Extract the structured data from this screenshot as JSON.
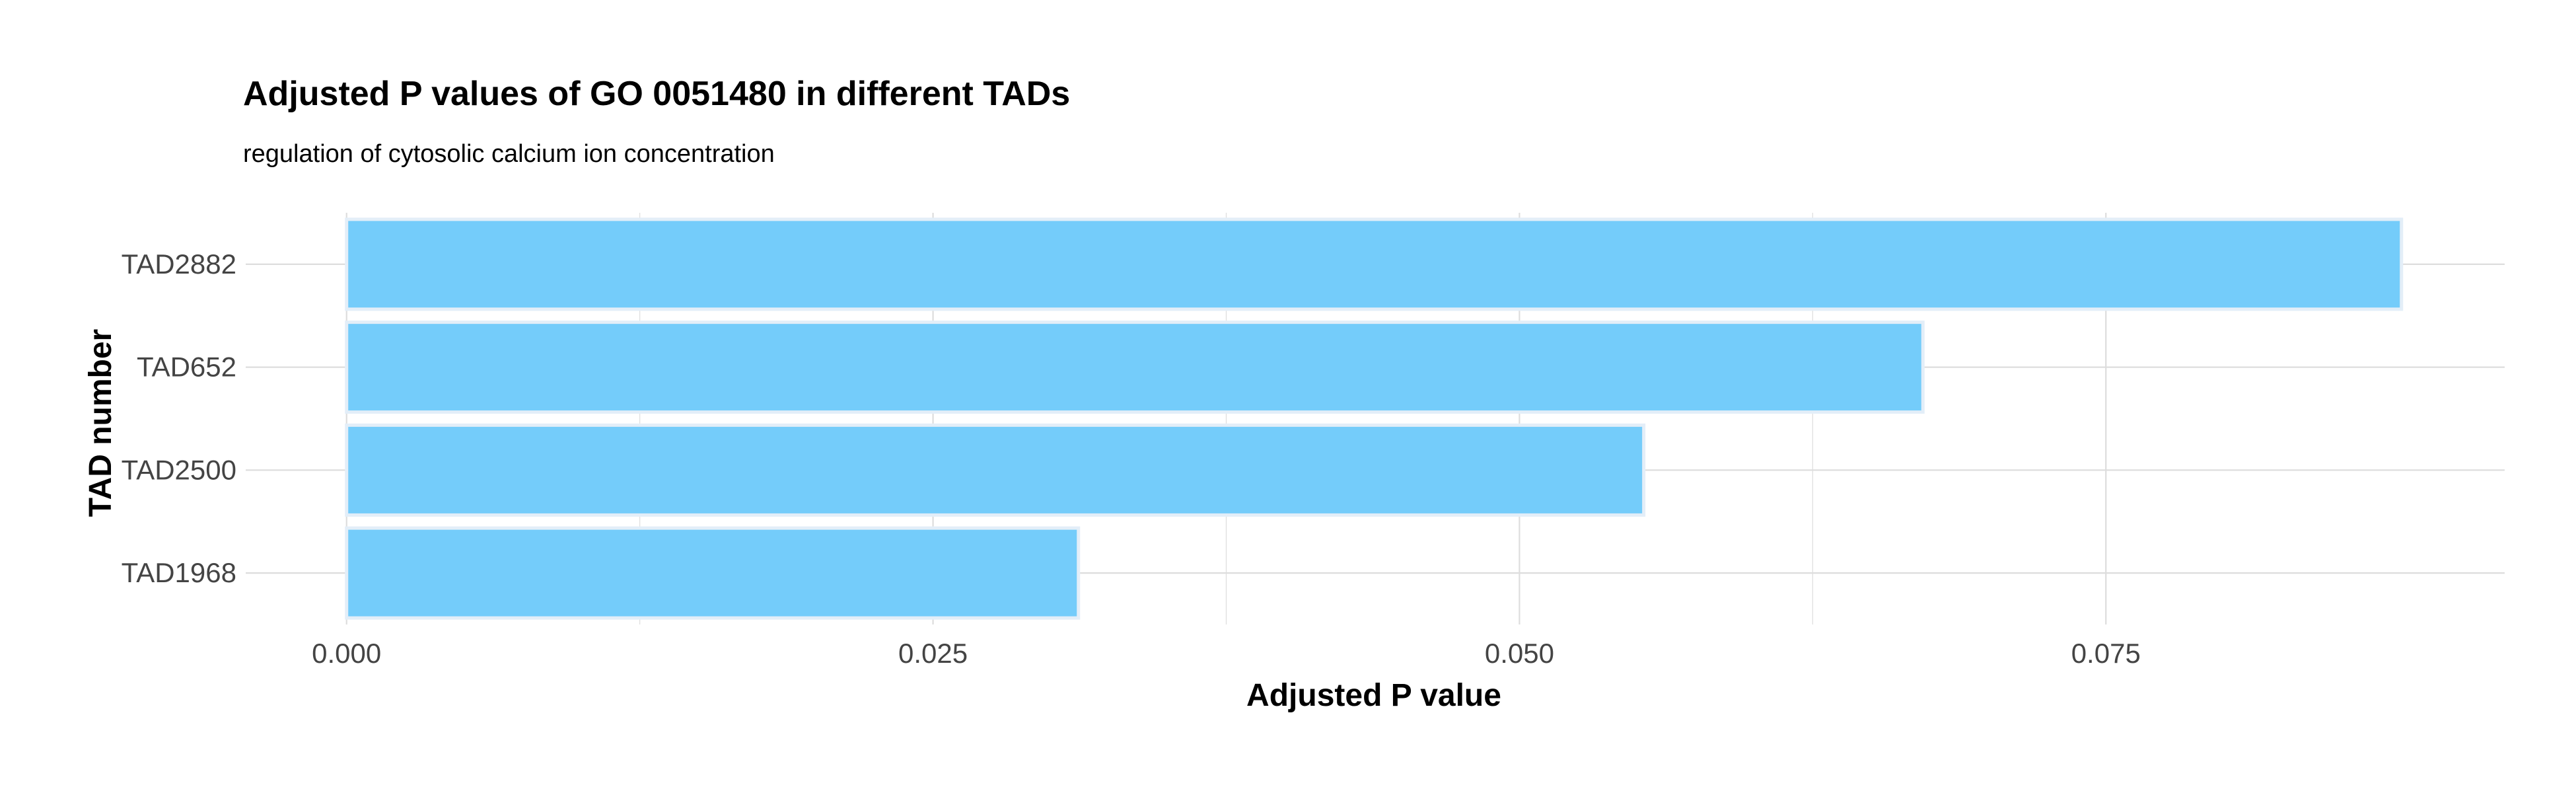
{
  "chart_data": {
    "type": "bar",
    "orientation": "horizontal",
    "title": "Adjusted P values of GO 0051480 in different TADs",
    "subtitle": "regulation of cytosolic calcium ion concentration",
    "xlabel": "Adjusted P value",
    "ylabel": "TAD number",
    "categories": [
      "TAD1968",
      "TAD2500",
      "TAD652",
      "TAD2882"
    ],
    "values": [
      0.0312,
      0.0553,
      0.0672,
      0.0876
    ],
    "xlim": [
      -0.0043,
      0.092
    ],
    "xticks": [
      0.0,
      0.025,
      0.05,
      0.075
    ],
    "xtick_labels": [
      "0.000",
      "0.025",
      "0.050",
      "0.075"
    ],
    "grid": true,
    "legend": "none",
    "colors": {
      "bar_fill": "#74CCFA",
      "bar_outline": "#E3EEF8",
      "grid": "#DDDDDD",
      "text": "#000000",
      "tick_text": "#444444"
    }
  }
}
